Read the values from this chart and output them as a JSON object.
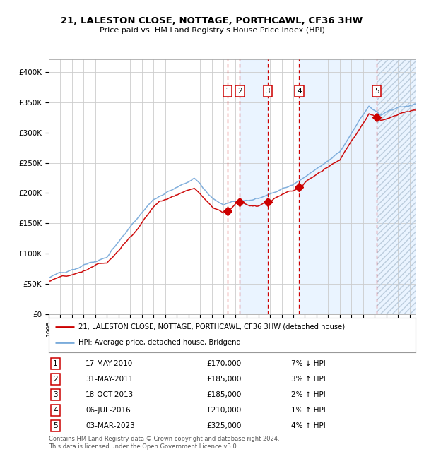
{
  "title": "21, LALESTON CLOSE, NOTTAGE, PORTHCAWL, CF36 3HW",
  "subtitle": "Price paid vs. HM Land Registry's House Price Index (HPI)",
  "ylim": [
    0,
    420000
  ],
  "yticks": [
    0,
    50000,
    100000,
    150000,
    200000,
    250000,
    300000,
    350000,
    400000
  ],
  "ytick_labels": [
    "£0",
    "£50K",
    "£100K",
    "£150K",
    "£200K",
    "£250K",
    "£300K",
    "£350K",
    "£400K"
  ],
  "xlim_start": 1995.0,
  "xlim_end": 2026.5,
  "hpi_color": "#7aabdb",
  "price_color": "#cc0000",
  "marker_color": "#cc0000",
  "bg_color": "#ffffff",
  "grid_color": "#cccccc",
  "shade_color": "#ddeeff",
  "hatch_color": "#bbccdd",
  "transactions": [
    {
      "num": 1,
      "date_dec": 2010.37,
      "price": 170000,
      "label": "17-MAY-2010",
      "pct": "7% ↓ HPI"
    },
    {
      "num": 2,
      "date_dec": 2011.41,
      "price": 185000,
      "label": "31-MAY-2011",
      "pct": "3% ↑ HPI"
    },
    {
      "num": 3,
      "date_dec": 2013.8,
      "price": 185000,
      "label": "18-OCT-2013",
      "pct": "2% ↑ HPI"
    },
    {
      "num": 4,
      "date_dec": 2016.51,
      "price": 210000,
      "label": "06-JUL-2016",
      "pct": "1% ↑ HPI"
    },
    {
      "num": 5,
      "date_dec": 2023.17,
      "price": 325000,
      "label": "03-MAR-2023",
      "pct": "4% ↑ HPI"
    }
  ],
  "legend_house_label": "21, LALESTON CLOSE, NOTTAGE, PORTHCAWL, CF36 3HW (detached house)",
  "legend_hpi_label": "HPI: Average price, detached house, Bridgend",
  "footnote": "Contains HM Land Registry data © Crown copyright and database right 2024.\nThis data is licensed under the Open Government Licence v3.0."
}
